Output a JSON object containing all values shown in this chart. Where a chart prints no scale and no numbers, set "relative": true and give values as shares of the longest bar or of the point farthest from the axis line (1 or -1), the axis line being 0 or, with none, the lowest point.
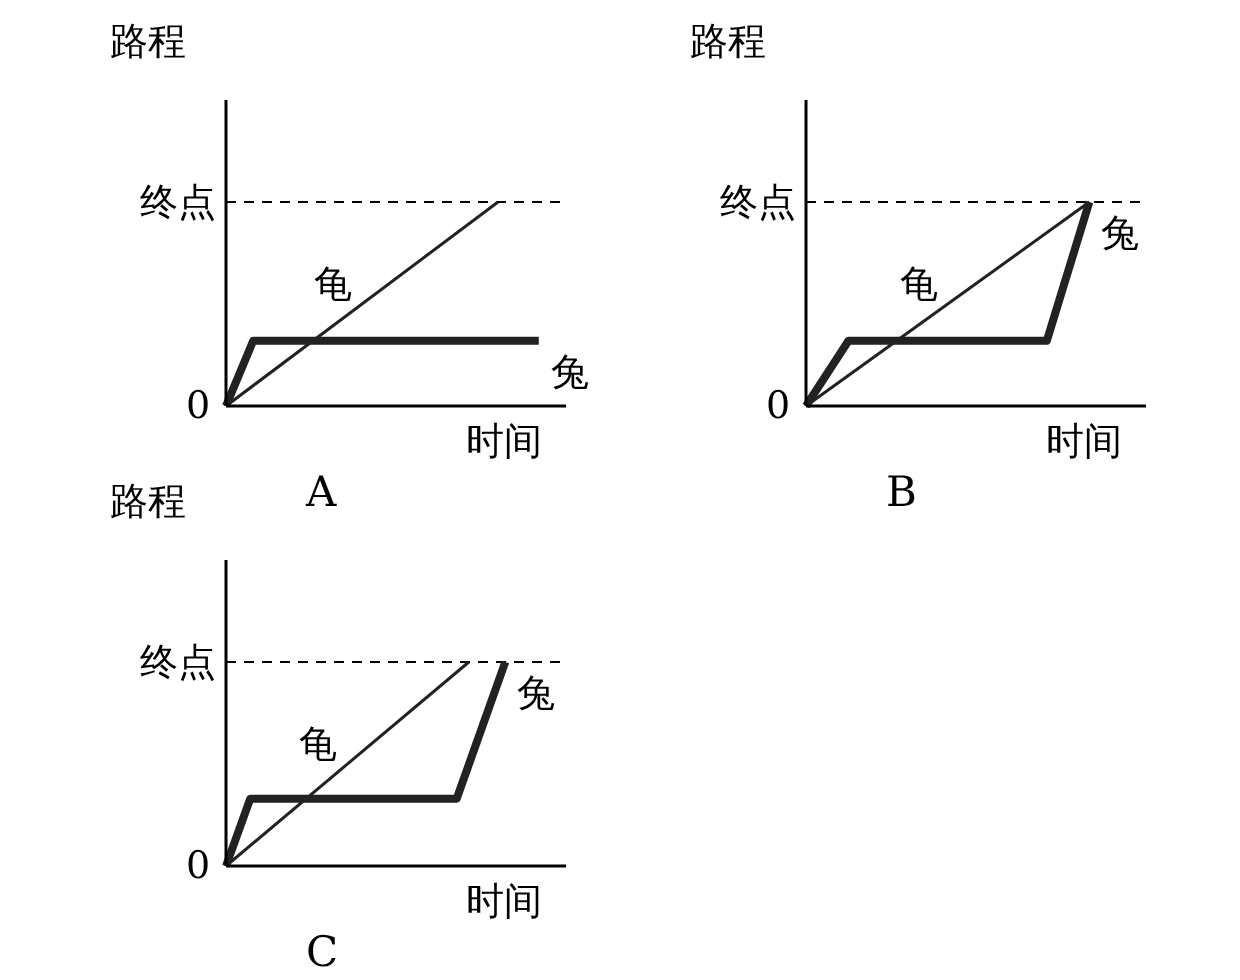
{
  "chart_data": [
    {
      "type": "line",
      "title": "A",
      "xlabel": "时间",
      "ylabel": "路程",
      "relative": true,
      "legend": false,
      "marker": "none",
      "line_style": "solid",
      "annotations": [
        "0"
      ],
      "categories": [
        null,
        null,
        null,
        null,
        null,
        null,
        null,
        null,
        null,
        null,
        null,
        null,
        null,
        null,
        null,
        null,
        null,
        null,
        null,
        null,
        null,
        null,
        null,
        null,
        null,
        null
      ],
      "ref_lines": [
        {
          "axis": "y",
          "value": 1,
          "label": "终点",
          "line_style": "dashed"
        }
      ],
      "series": [
        {
          "name": "龟",
          "color": "#222222",
          "values": [
            0,
            null,
            null,
            null,
            null,
            null,
            null,
            null,
            null,
            null,
            null,
            null,
            null,
            null,
            null,
            null,
            null,
            null,
            null,
            null,
            1,
            null,
            null,
            null,
            null,
            null
          ]
        },
        {
          "name": "兔",
          "color": "#222222",
          "values": [
            0,
            null,
            0.32,
            null,
            null,
            null,
            null,
            null,
            null,
            null,
            null,
            null,
            null,
            null,
            null,
            null,
            null,
            null,
            null,
            null,
            null,
            null,
            null,
            0.32,
            null,
            null
          ]
        }
      ]
    },
    {
      "type": "line",
      "title": "B",
      "xlabel": "时间",
      "ylabel": "路程",
      "relative": true,
      "legend": false,
      "marker": "none",
      "line_style": "solid",
      "annotations": [
        "0"
      ],
      "categories": [
        null,
        null,
        null,
        null,
        null,
        null,
        null,
        null,
        null,
        null,
        null,
        null,
        null,
        null,
        null,
        null,
        null,
        null,
        null,
        null,
        null,
        null,
        null,
        null,
        null
      ],
      "ref_lines": [
        {
          "axis": "y",
          "value": 1,
          "label": "终点",
          "line_style": "dashed"
        }
      ],
      "series": [
        {
          "name": "龟",
          "color": "#222222",
          "values": [
            0,
            null,
            null,
            null,
            null,
            null,
            null,
            null,
            null,
            null,
            null,
            null,
            null,
            null,
            null,
            null,
            null,
            null,
            null,
            null,
            1,
            null,
            null,
            null,
            null
          ]
        },
        {
          "name": "兔",
          "color": "#222222",
          "values": [
            0,
            null,
            null,
            0.32,
            null,
            null,
            null,
            null,
            null,
            null,
            null,
            null,
            null,
            null,
            null,
            null,
            null,
            0.32,
            null,
            null,
            1,
            null,
            null,
            null,
            null
          ]
        }
      ]
    },
    {
      "type": "line",
      "title": "C",
      "xlabel": "时间",
      "ylabel": "路程",
      "relative": true,
      "legend": false,
      "marker": "none",
      "line_style": "solid",
      "annotations": [
        "0"
      ],
      "categories": [
        null,
        null,
        null,
        null,
        null,
        null,
        null,
        null,
        null,
        null,
        null,
        null,
        null,
        null,
        null,
        null,
        null,
        null,
        null,
        null,
        null,
        null,
        null,
        null,
        null,
        null,
        null,
        null,
        null
      ],
      "ref_lines": [
        {
          "axis": "y",
          "value": 1,
          "label": "终点",
          "line_style": "dashed"
        }
      ],
      "series": [
        {
          "name": "龟",
          "color": "#222222",
          "values": [
            0,
            null,
            null,
            null,
            null,
            null,
            null,
            null,
            null,
            null,
            null,
            null,
            null,
            null,
            null,
            null,
            null,
            null,
            null,
            null,
            1,
            null,
            null,
            null,
            null,
            null,
            null,
            null,
            null
          ]
        },
        {
          "name": "兔",
          "color": "#222222",
          "values": [
            0,
            null,
            0.33,
            null,
            null,
            null,
            null,
            null,
            null,
            null,
            null,
            null,
            null,
            null,
            null,
            null,
            null,
            null,
            null,
            0.33,
            null,
            null,
            null,
            1,
            null,
            null,
            null,
            null,
            null
          ]
        }
      ]
    }
  ]
}
